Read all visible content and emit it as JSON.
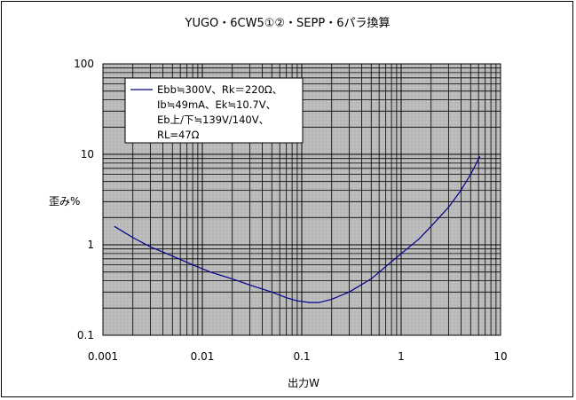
{
  "chart_data": {
    "type": "line",
    "title": "YUGO・6CW5①②・SEPP・6パラ換算",
    "xlabel": "出力W",
    "ylabel": "歪み%",
    "xscale": "log",
    "yscale": "log",
    "xlim": [
      0.001,
      10
    ],
    "ylim": [
      0.1,
      100
    ],
    "xticks": [
      "0.001",
      "0.01",
      "0.1",
      "1",
      "10"
    ],
    "yticks": [
      "0.1",
      "1",
      "10",
      "100"
    ],
    "grid": true,
    "plot_background": "#c0c0c0",
    "legend_position": "top-left",
    "series": [
      {
        "name": "Ebb≒300V、Rk＝220Ω、Ib≒49mA、Ek≒10.7V、Eb上/下≒139V/140V、RL=47Ω",
        "color": "#00008b",
        "points": [
          [
            0.0013,
            1.6
          ],
          [
            0.002,
            1.2
          ],
          [
            0.003,
            0.95
          ],
          [
            0.005,
            0.75
          ],
          [
            0.008,
            0.6
          ],
          [
            0.012,
            0.5
          ],
          [
            0.02,
            0.42
          ],
          [
            0.03,
            0.36
          ],
          [
            0.05,
            0.3
          ],
          [
            0.07,
            0.26
          ],
          [
            0.09,
            0.24
          ],
          [
            0.12,
            0.23
          ],
          [
            0.15,
            0.23
          ],
          [
            0.2,
            0.25
          ],
          [
            0.3,
            0.3
          ],
          [
            0.5,
            0.42
          ],
          [
            0.8,
            0.65
          ],
          [
            1.0,
            0.8
          ],
          [
            1.5,
            1.15
          ],
          [
            2.0,
            1.6
          ],
          [
            3.0,
            2.6
          ],
          [
            4.0,
            4.0
          ],
          [
            5.0,
            6.0
          ],
          [
            6.2,
            9.5
          ]
        ]
      }
    ]
  },
  "legend": {
    "lines": [
      "Ebb≒300V、Rk＝220Ω、",
      "Ib≒49mA、Ek≒10.7V、",
      "Eb上/下≒139V/140V、",
      "RL=47Ω"
    ]
  }
}
